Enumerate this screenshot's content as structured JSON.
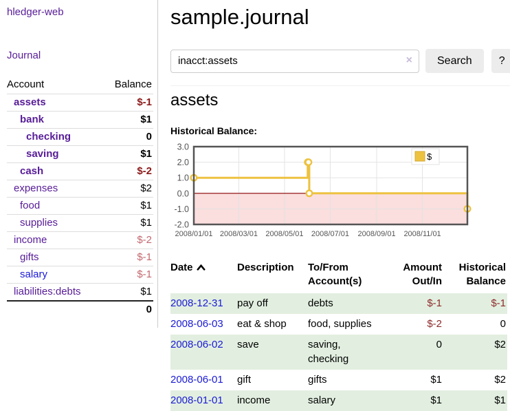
{
  "sidebar": {
    "brand": "hledger-web",
    "nav": [
      {
        "label": "Journal"
      }
    ],
    "accounts_table": {
      "headers": [
        "Account",
        "Balance"
      ],
      "rows": [
        {
          "name": "assets",
          "level": 1,
          "bold": true,
          "balance": "$-1",
          "neg": "strong"
        },
        {
          "name": "bank",
          "level": 2,
          "bold": true,
          "balance": "$1"
        },
        {
          "name": "checking",
          "level": 3,
          "bold": true,
          "balance": "0"
        },
        {
          "name": "saving",
          "level": 3,
          "bold": true,
          "balance": "$1"
        },
        {
          "name": "cash",
          "level": 2,
          "bold": true,
          "balance": "$-2",
          "neg": "strong"
        },
        {
          "name": "expenses",
          "level": 1,
          "bold": false,
          "balance": "$2"
        },
        {
          "name": "food",
          "level": 2,
          "bold": false,
          "balance": "$1"
        },
        {
          "name": "supplies",
          "level": 2,
          "bold": false,
          "balance": "$1"
        },
        {
          "name": "income",
          "level": 1,
          "bold": false,
          "balance": "$-2",
          "neg": "soft"
        },
        {
          "name": "gifts",
          "level": 2,
          "bold": false,
          "balance": "$-1",
          "neg": "soft"
        },
        {
          "name": "salary",
          "level": 2,
          "bold": false,
          "balance": "$-1",
          "neg": "soft",
          "link_color": "blue"
        },
        {
          "name": "liabilities:debts",
          "level": 1,
          "bold": false,
          "balance": "$1"
        }
      ],
      "total": "0"
    }
  },
  "header": {
    "title": "sample.journal"
  },
  "search": {
    "value": "inacct:assets",
    "clear_icon": "×",
    "search_label": "Search",
    "help_label": "?"
  },
  "page": {
    "heading": "assets",
    "chart_label": "Historical Balance:"
  },
  "chart_data": {
    "type": "line",
    "title": "Historical Balance:",
    "step": true,
    "x_range": [
      "2008-01-01",
      "2008-12-31"
    ],
    "ylim": [
      -2,
      3
    ],
    "yticks": [
      {
        "value": 3,
        "label": "3.0"
      },
      {
        "value": 2,
        "label": "2.0"
      },
      {
        "value": 1,
        "label": "1.0"
      },
      {
        "value": 0,
        "label": "0.0"
      },
      {
        "value": -1,
        "label": "-1.0"
      },
      {
        "value": -2,
        "label": "-2.0"
      }
    ],
    "xticks": [
      {
        "date": "2008-01-01",
        "label": "2008/01/01"
      },
      {
        "date": "2008-03-01",
        "label": "2008/03/01"
      },
      {
        "date": "2008-05-01",
        "label": "2008/05/01"
      },
      {
        "date": "2008-07-01",
        "label": "2008/07/01"
      },
      {
        "date": "2008-09-01",
        "label": "2008/09/01"
      },
      {
        "date": "2008-11-01",
        "label": "2008/11/01"
      }
    ],
    "series": [
      {
        "name": "$",
        "color": "#edc240",
        "points": [
          [
            "2008-01-01",
            1
          ],
          [
            "2008-06-01",
            2
          ],
          [
            "2008-06-02",
            2
          ],
          [
            "2008-06-03",
            0
          ],
          [
            "2008-12-31",
            -1
          ]
        ]
      }
    ],
    "legend": {
      "label": "$",
      "position": "top-right"
    },
    "grid": true,
    "negative_region_fill": "#fbdede",
    "zero_line_color": "#8b0000"
  },
  "transactions": {
    "columns": [
      {
        "label": "Date",
        "sorted": "asc"
      },
      {
        "label": "Description"
      },
      {
        "label": "To/From Account(s)"
      },
      {
        "label": "Amount Out/In",
        "align": "right"
      },
      {
        "label": "Historical Balance",
        "align": "right"
      }
    ],
    "rows": [
      {
        "date": "2008-12-31",
        "description": "pay off",
        "accounts": "debts",
        "amount": "$-1",
        "balance": "$-1"
      },
      {
        "date": "2008-06-03",
        "description": "eat & shop",
        "accounts": "food, supplies",
        "amount": "$-2",
        "balance": "0"
      },
      {
        "date": "2008-06-02",
        "description": "save",
        "accounts": "saving, checking",
        "amount": "0",
        "balance": "$2"
      },
      {
        "date": "2008-06-01",
        "description": "gift",
        "accounts": "gifts",
        "amount": "$1",
        "balance": "$2"
      },
      {
        "date": "2008-01-01",
        "description": "income",
        "accounts": "salary",
        "amount": "$1",
        "balance": "$1"
      }
    ]
  },
  "colors": {
    "link_purple": "#571c97",
    "link_blue": "#1a1ad6",
    "negative_strong": "#8b1a1a",
    "negative_soft": "#c4686e",
    "table_negative": "#8e2a2a",
    "row_green": "#e2efe0",
    "chart_line": "#edc240",
    "chart_negative_fill": "#fbdede",
    "chart_zero_line": "#8b0000",
    "button_bg": "#ececec"
  }
}
